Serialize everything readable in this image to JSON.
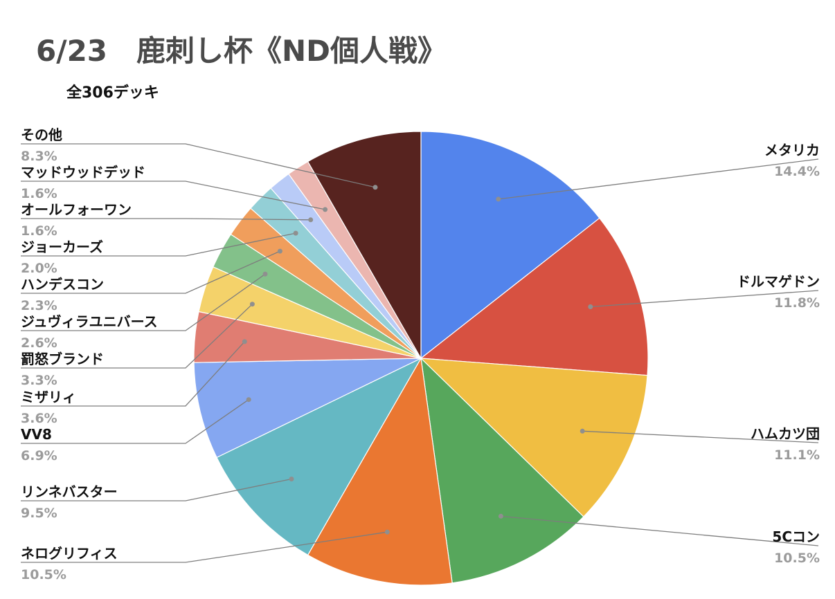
{
  "header": {
    "title": "6/23　鹿刺し杯《ND個人戦》",
    "subtitle": "全306デッキ"
  },
  "chart_data": {
    "type": "pie",
    "title": "6/23　鹿刺し杯《ND個人戦》",
    "subtitle": "全306デッキ",
    "start_angle": "12 o'clock",
    "direction": "clockwise",
    "slices": [
      {
        "label": "メタリカ",
        "value": 14.4,
        "value_label": "14.4%",
        "color": "#5384ec"
      },
      {
        "label": "ドルマゲドン",
        "value": 11.8,
        "value_label": "11.8%",
        "color": "#d75141"
      },
      {
        "label": "ハムカツ団",
        "value": 11.1,
        "value_label": "11.1%",
        "color": "#f0be42"
      },
      {
        "label": "5Cコン",
        "value": 10.5,
        "value_label": "10.5%",
        "color": "#57a75c"
      },
      {
        "label": "ネログリフィス",
        "value": 10.5,
        "value_label": "10.5%",
        "color": "#ea7731"
      },
      {
        "label": "リンネバスター",
        "value": 9.5,
        "value_label": "9.5%",
        "color": "#65b8c3"
      },
      {
        "label": "VV8",
        "value": 6.9,
        "value_label": "6.9%",
        "color": "#85a7f1"
      },
      {
        "label": "ミザリィ",
        "value": 3.6,
        "value_label": "3.6%",
        "color": "#e07d72"
      },
      {
        "label": "罰怒ブランド",
        "value": 3.3,
        "value_label": "3.3%",
        "color": "#f4d26a"
      },
      {
        "label": "ジュヴィラユニバース",
        "value": 2.6,
        "value_label": "2.6%",
        "color": "#83c18a"
      },
      {
        "label": "ハンデスコン",
        "value": 2.3,
        "value_label": "2.3%",
        "color": "#f09e5c"
      },
      {
        "label": "ジョーカーズ",
        "value": 2.0,
        "value_label": "2.0%",
        "color": "#93cfd6"
      },
      {
        "label": "オールフォーワン",
        "value": 1.6,
        "value_label": "1.6%",
        "color": "#b9cbf7"
      },
      {
        "label": "マッドウッドデッド",
        "value": 1.6,
        "value_label": "1.6%",
        "color": "#ebb6b0"
      },
      {
        "label": "その他",
        "value": 8.3,
        "value_label": "8.3%",
        "color": "#57231f"
      }
    ]
  }
}
